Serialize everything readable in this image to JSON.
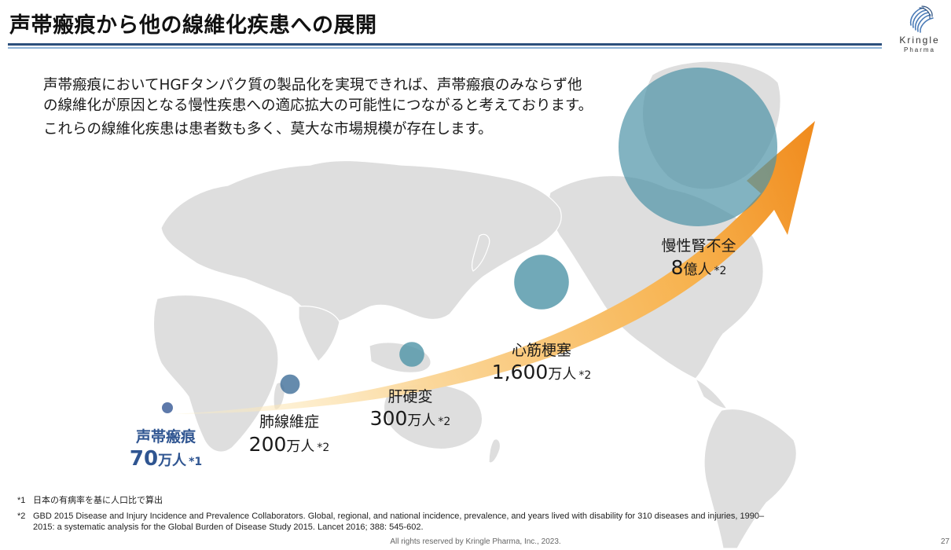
{
  "header": {
    "title": "声帯瘢痕から他の線維化疾患への展開",
    "logo_name": "Kringle",
    "logo_sub": "Pharma"
  },
  "intro": {
    "paragraph1": "声帯瘢痕においてHGFタンパク質の製品化を実現できれば、声帯瘢痕のみならず他の線維化が原因となる慢性疾患への適応拡大の可能性につながると考えております。",
    "paragraph2": "これらの線維化疾患は患者数も多く、莫大な市場規模が存在します。"
  },
  "colors": {
    "accent_dark": "#2c4f7c",
    "accent_light": "#8fb4d8",
    "bubble_teal": "#4d93a6",
    "bubble_blue": "#3e6e99",
    "bubble_small": "#5d79aa",
    "highlight_label": "#2f5591",
    "arrow_start": "#fdf0c8",
    "arrow_end": "#f08a1c",
    "map": "#dedede"
  },
  "chart_data": {
    "type": "bubble",
    "title": "",
    "unit": "万人",
    "points": [
      {
        "name": "声帯瘢痕",
        "value_label": "70",
        "unit_label": "万人",
        "note": "*1",
        "patients_man": 70,
        "highlight": true
      },
      {
        "name": "肺線維症",
        "value_label": "200",
        "unit_label": "万人",
        "note": "*2",
        "patients_man": 200,
        "highlight": false
      },
      {
        "name": "肝硬変",
        "value_label": "300",
        "unit_label": "万人",
        "note": "*2",
        "patients_man": 300,
        "highlight": false
      },
      {
        "name": "心筋梗塞",
        "value_label": "1,600",
        "unit_label": "万人",
        "note": "*2",
        "patients_man": 1600,
        "highlight": false
      },
      {
        "name": "慢性腎不全",
        "value_label": "8",
        "unit_label": "億人",
        "note": "*2",
        "patients_man": 80000,
        "highlight": false
      }
    ]
  },
  "footnotes": {
    "note1_mark": "*1",
    "note1_text": "日本の有病率を基に人口比で算出",
    "note2_mark": "*2",
    "note2_line1": "GBD 2015 Disease and Injury Incidence and Prevalence Collaborators. Global, regional, and national incidence, prevalence, and years lived with disability for 310 diseases and injuries, 1990–",
    "note2_line2": "2015: a systematic analysis for the Global Burden of Disease Study 2015. Lancet 2016; 388: 545-602."
  },
  "footer": {
    "copyright": "All rights reserved by Kringle Pharma, Inc., 2023.",
    "page": "27"
  }
}
